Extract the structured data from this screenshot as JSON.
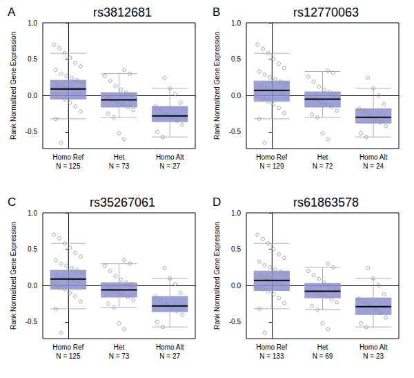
{
  "chart_data": [
    {
      "type": "boxplot",
      "panel": "A",
      "title": "rs3812681",
      "y_label": "Rank Normalized Gene Expression",
      "categories": [
        "Homo Ref",
        "Het",
        "Homo Alt"
      ],
      "count_labels": [
        "N = 125",
        "N = 73",
        "N = 27"
      ],
      "box_stats": [
        [
          -0.32,
          -0.05,
          0.09,
          0.21,
          0.58
        ],
        [
          -0.3,
          -0.16,
          -0.06,
          0.04,
          0.3
        ],
        [
          -0.57,
          -0.36,
          -0.28,
          -0.15,
          0.1
        ]
      ],
      "points": [
        [
          0.7,
          0.65,
          0.58,
          0.52,
          0.45,
          0.4,
          0.35,
          0.3,
          0.27,
          0.24,
          0.21,
          0.18,
          0.15,
          0.12,
          0.1,
          0.08,
          0.05,
          0.02,
          -0.02,
          -0.05,
          -0.1,
          -0.15,
          -0.22,
          -0.32,
          -0.65
        ],
        [
          0.35,
          0.3,
          0.27,
          0.2,
          0.13,
          0.08,
          0.04,
          0.01,
          -0.03,
          -0.06,
          -0.09,
          -0.12,
          -0.16,
          -0.2,
          -0.25,
          -0.3,
          -0.52,
          -0.6
        ],
        [
          0.24,
          0.1,
          0.02,
          -0.1,
          -0.15,
          -0.2,
          -0.26,
          -0.3,
          -0.35,
          -0.4,
          -0.5,
          -0.57
        ]
      ],
      "color": "#8b8fd1",
      "grid": false,
      "ylim": [
        -0.73,
        1.0
      ],
      "yticks": [
        {
          "value": -0.5,
          "label": "-0.5"
        },
        {
          "value": 0,
          "label": "0.0"
        },
        {
          "value": 0.5,
          "label": "0.5"
        },
        {
          "value": 1.0,
          "label": "1.0"
        }
      ]
    },
    {
      "type": "boxplot",
      "panel": "B",
      "title": "rs12770063",
      "y_label": "Rank Normalized Gene Expression",
      "categories": [
        "Homo Ref",
        "Het",
        "Homo Alt"
      ],
      "count_labels": [
        "N = 129",
        "N = 72",
        "N = 24"
      ],
      "box_stats": [
        [
          -0.32,
          -0.08,
          0.07,
          0.2,
          0.58
        ],
        [
          -0.3,
          -0.16,
          -0.05,
          0.05,
          0.33
        ],
        [
          -0.57,
          -0.38,
          -0.3,
          -0.18,
          0.1
        ]
      ],
      "points": [
        [
          0.7,
          0.64,
          0.58,
          0.5,
          0.44,
          0.38,
          0.33,
          0.29,
          0.25,
          0.22,
          0.19,
          0.16,
          0.13,
          0.1,
          0.07,
          0.05,
          0.02,
          -0.01,
          -0.04,
          -0.08,
          -0.12,
          -0.17,
          -0.24,
          -0.32,
          -0.65
        ],
        [
          0.34,
          0.31,
          0.26,
          0.19,
          0.12,
          0.08,
          0.05,
          0.01,
          -0.02,
          -0.05,
          -0.08,
          -0.12,
          -0.16,
          -0.21,
          -0.26,
          -0.3,
          -0.52,
          -0.6
        ],
        [
          0.24,
          0.1,
          0.0,
          -0.12,
          -0.18,
          -0.22,
          -0.28,
          -0.32,
          -0.37,
          -0.42,
          -0.52,
          -0.57
        ]
      ],
      "color": "#8b8fd1",
      "grid": false,
      "ylim": [
        -0.73,
        1.0
      ],
      "yticks": [
        {
          "value": -0.5,
          "label": "-0.5"
        },
        {
          "value": 0,
          "label": "0.0"
        },
        {
          "value": 0.5,
          "label": "0.5"
        },
        {
          "value": 1.0,
          "label": "1.0"
        }
      ]
    },
    {
      "type": "boxplot",
      "panel": "C",
      "title": "rs35267061",
      "y_label": "Rank Normalized Gene Expression",
      "categories": [
        "Homo Ref",
        "Het",
        "Homo Alt"
      ],
      "count_labels": [
        "N = 125",
        "N = 73",
        "N = 27"
      ],
      "box_stats": [
        [
          -0.32,
          -0.05,
          0.09,
          0.21,
          0.58
        ],
        [
          -0.3,
          -0.16,
          -0.06,
          0.04,
          0.3
        ],
        [
          -0.57,
          -0.36,
          -0.28,
          -0.15,
          0.1
        ]
      ],
      "points": [
        [
          0.7,
          0.65,
          0.58,
          0.52,
          0.45,
          0.4,
          0.35,
          0.3,
          0.27,
          0.24,
          0.21,
          0.18,
          0.15,
          0.12,
          0.1,
          0.08,
          0.05,
          0.02,
          -0.02,
          -0.05,
          -0.1,
          -0.15,
          -0.22,
          -0.32,
          -0.65
        ],
        [
          0.35,
          0.3,
          0.27,
          0.2,
          0.13,
          0.08,
          0.04,
          0.01,
          -0.03,
          -0.06,
          -0.09,
          -0.12,
          -0.16,
          -0.2,
          -0.25,
          -0.3,
          -0.52,
          -0.6
        ],
        [
          0.24,
          0.1,
          0.02,
          -0.1,
          -0.15,
          -0.2,
          -0.26,
          -0.3,
          -0.35,
          -0.4,
          -0.5,
          -0.57
        ]
      ],
      "color": "#8b8fd1",
      "grid": false,
      "ylim": [
        -0.73,
        1.0
      ],
      "yticks": [
        {
          "value": -0.5,
          "label": "-0.5"
        },
        {
          "value": 0,
          "label": "0.0"
        },
        {
          "value": 0.5,
          "label": "0.5"
        },
        {
          "value": 1.0,
          "label": "1.0"
        }
      ]
    },
    {
      "type": "boxplot",
      "panel": "D",
      "title": "rs61863578",
      "y_label": "Rank Normalized Gene Expression",
      "categories": [
        "Homo Ref",
        "Het",
        "Homo Alt"
      ],
      "count_labels": [
        "N = 133",
        "N = 69",
        "N = 23"
      ],
      "box_stats": [
        [
          -0.32,
          -0.07,
          0.07,
          0.2,
          0.58
        ],
        [
          -0.33,
          -0.17,
          -0.08,
          0.03,
          0.25
        ],
        [
          -0.57,
          -0.4,
          -0.29,
          -0.17,
          0.1
        ]
      ],
      "points": [
        [
          0.7,
          0.64,
          0.58,
          0.5,
          0.43,
          0.38,
          0.33,
          0.28,
          0.25,
          0.22,
          0.19,
          0.16,
          0.13,
          0.1,
          0.07,
          0.04,
          0.01,
          -0.02,
          -0.05,
          -0.08,
          -0.12,
          -0.17,
          -0.24,
          -0.32,
          -0.65
        ],
        [
          0.3,
          0.25,
          0.2,
          0.14,
          0.09,
          0.04,
          0.0,
          -0.03,
          -0.06,
          -0.09,
          -0.12,
          -0.15,
          -0.19,
          -0.23,
          -0.28,
          -0.33,
          -0.52,
          -0.6
        ],
        [
          0.24,
          0.1,
          0.0,
          -0.12,
          -0.18,
          -0.23,
          -0.28,
          -0.33,
          -0.38,
          -0.44,
          -0.52,
          -0.57
        ]
      ],
      "color": "#8b8fd1",
      "grid": false,
      "ylim": [
        -0.73,
        1.0
      ],
      "yticks": [
        {
          "value": -0.5,
          "label": "-0.5"
        },
        {
          "value": 0,
          "label": "0.0"
        },
        {
          "value": 0.5,
          "label": "0.5"
        },
        {
          "value": 1.0,
          "label": "1.0"
        }
      ]
    }
  ]
}
